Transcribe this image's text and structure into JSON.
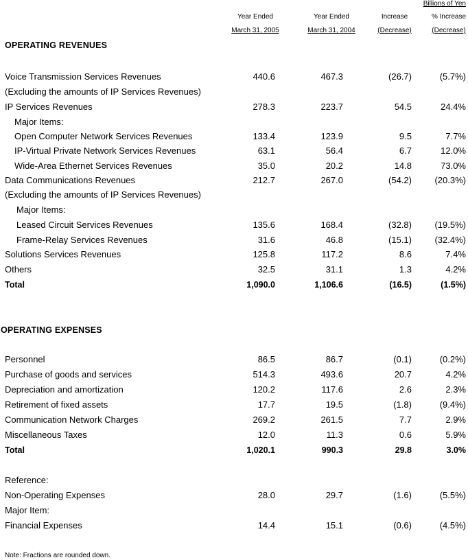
{
  "header": {
    "unit": "Billions of Yen",
    "col1": [
      "Year Ended",
      "March 31, 2005"
    ],
    "col2": [
      "Year Ended",
      "March 31, 2004"
    ],
    "col3": [
      "Increase",
      "(Decrease)"
    ],
    "col4": [
      "% Increase",
      "(Decrease)"
    ]
  },
  "revenues": {
    "title": "OPERATING REVENUES",
    "rows": [
      {
        "label": "Voice Transmission Services Revenues",
        "v1": "440.6",
        "v2": "467.3",
        "v3": "(26.7)",
        "v4": "(5.7%)"
      },
      {
        "label": "(Excluding the amounts of IP Services Revenues)"
      },
      {
        "label": "IP Services Revenues",
        "v1": "278.3",
        "v2": "223.7",
        "v3": "54.5",
        "v4": "24.4%"
      },
      {
        "label": "Major Items:"
      },
      {
        "label": "Open Computer Network Services Revenues",
        "v1": "133.4",
        "v2": "123.9",
        "v3": "9.5",
        "v4": "7.7%"
      },
      {
        "label": "IP-Virtual Private Network Services Revenues",
        "v1": "63.1",
        "v2": "56.4",
        "v3": "6.7",
        "v4": "12.0%"
      },
      {
        "label": "Wide-Area Ethernet Services Revenues",
        "v1": "35.0",
        "v2": "20.2",
        "v3": "14.8",
        "v4": "73.0%"
      },
      {
        "label": "Data Communications Revenues",
        "v1": "212.7",
        "v2": "267.0",
        "v3": "(54.2)",
        "v4": "(20.3%)"
      },
      {
        "label": "(Excluding the amounts of IP Services Revenues)"
      },
      {
        "label": "Major Items:"
      },
      {
        "label": "Leased Circuit Services Revenues",
        "v1": "135.6",
        "v2": "168.4",
        "v3": "(32.8)",
        "v4": "(19.5%)"
      },
      {
        "label": "Frame-Relay Services Revenues",
        "v1": "31.6",
        "v2": "46.8",
        "v3": "(15.1)",
        "v4": "(32.4%)"
      },
      {
        "label": "Solutions Services Revenues",
        "v1": "125.8",
        "v2": "117.2",
        "v3": "8.6",
        "v4": "7.4%"
      },
      {
        "label": "Others",
        "v1": "32.5",
        "v2": "31.1",
        "v3": "1.3",
        "v4": "4.2%"
      },
      {
        "label": "Total",
        "v1": "1,090.0",
        "v2": "1,106.6",
        "v3": "(16.5)",
        "v4": "(1.5%)"
      }
    ]
  },
  "expenses": {
    "title": "OPERATING EXPENSES",
    "rows": [
      {
        "label": "Personnel",
        "v1": "86.5",
        "v2": "86.7",
        "v3": "(0.1)",
        "v4": "(0.2%)"
      },
      {
        "label": "Purchase of goods and services",
        "v1": "514.3",
        "v2": "493.6",
        "v3": "20.7",
        "v4": "4.2%"
      },
      {
        "label": "Depreciation and amortization",
        "v1": "120.2",
        "v2": "117.6",
        "v3": "2.6",
        "v4": "2.3%"
      },
      {
        "label": "Retirement of fixed assets",
        "v1": "17.7",
        "v2": "19.5",
        "v3": "(1.8)",
        "v4": "(9.4%)"
      },
      {
        "label": "Communication Network Charges",
        "v1": "269.2",
        "v2": "261.5",
        "v3": "7.7",
        "v4": "2.9%"
      },
      {
        "label": "Miscellaneous Taxes",
        "v1": "12.0",
        "v2": "11.3",
        "v3": "0.6",
        "v4": "5.9%"
      },
      {
        "label": "Total",
        "v1": "1,020.1",
        "v2": "990.3",
        "v3": "29.8",
        "v4": "3.0%"
      }
    ]
  },
  "reference": {
    "rows": [
      {
        "label": "Reference:"
      },
      {
        "label": "Non-Operating Expenses",
        "v1": "28.0",
        "v2": "29.7",
        "v3": "(1.6)",
        "v4": "(5.5%)"
      },
      {
        "label": "Major Item:"
      },
      {
        "label": "Financial Expenses",
        "v1": "14.4",
        "v2": "15.1",
        "v3": "(0.6)",
        "v4": "(4.5%)"
      }
    ]
  },
  "note": "Note: Fractions are rounded down."
}
